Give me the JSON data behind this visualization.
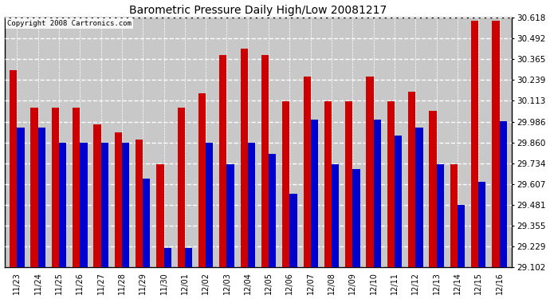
{
  "title": "Barometric Pressure Daily High/Low 20081217",
  "copyright": "Copyright 2008 Cartronics.com",
  "categories": [
    "11/23",
    "11/24",
    "11/25",
    "11/26",
    "11/27",
    "11/28",
    "11/29",
    "11/30",
    "12/01",
    "12/02",
    "12/03",
    "12/04",
    "12/05",
    "12/06",
    "12/07",
    "12/08",
    "12/09",
    "12/10",
    "12/11",
    "12/12",
    "12/13",
    "12/14",
    "12/15",
    "12/16"
  ],
  "highs": [
    30.3,
    30.07,
    30.07,
    30.07,
    29.97,
    29.92,
    29.88,
    29.73,
    30.07,
    30.16,
    30.39,
    30.43,
    30.39,
    30.11,
    30.26,
    30.11,
    30.11,
    30.26,
    30.11,
    30.17,
    30.05,
    29.73,
    30.6,
    30.6
  ],
  "lows": [
    29.95,
    29.95,
    29.86,
    29.86,
    29.86,
    29.86,
    29.64,
    29.22,
    29.22,
    29.86,
    29.73,
    29.86,
    29.79,
    29.55,
    30.0,
    29.73,
    29.7,
    30.0,
    29.9,
    29.95,
    29.73,
    29.48,
    29.62,
    29.99
  ],
  "high_color": "#cc0000",
  "low_color": "#0000cc",
  "bg_color": "#ffffff",
  "plot_bg_color": "#c8c8c8",
  "grid_color": "#ffffff",
  "ymin": 29.102,
  "ymax": 30.618,
  "yticks": [
    29.102,
    29.229,
    29.355,
    29.481,
    29.607,
    29.734,
    29.86,
    29.986,
    30.113,
    30.239,
    30.365,
    30.492,
    30.618
  ]
}
